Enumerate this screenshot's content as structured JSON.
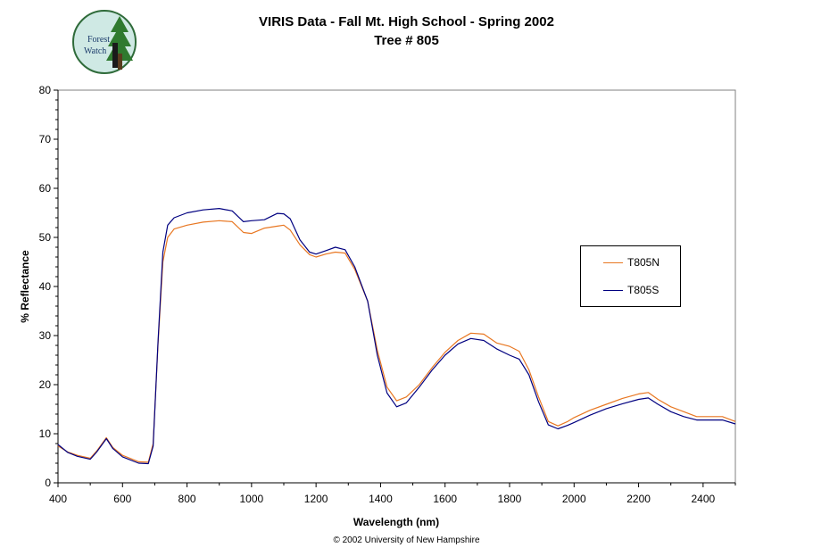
{
  "logo": {
    "text_line1": "Forest",
    "text_line2": "Watch"
  },
  "footer": "© 2002 University of New Hampshire",
  "chart_data": {
    "type": "line",
    "title": "VIRIS Data - Fall Mt. High School - Spring 2002",
    "subtitle": "Tree # 805",
    "xlabel": "Wavelength (nm)",
    "ylabel": "% Reflectance",
    "xlim": [
      400,
      2500
    ],
    "ylim": [
      0,
      80
    ],
    "x_ticks": [
      400,
      600,
      800,
      1000,
      1200,
      1400,
      1600,
      1800,
      2000,
      2200,
      2400
    ],
    "y_ticks": [
      0,
      10,
      20,
      30,
      40,
      50,
      60,
      70,
      80
    ],
    "grid": false,
    "legend_position": "right",
    "series": [
      {
        "name": "T805N",
        "color": "#E87722",
        "x": [
          400,
          430,
          460,
          500,
          520,
          550,
          570,
          600,
          650,
          680,
          695,
          710,
          725,
          740,
          760,
          800,
          850,
          900,
          940,
          975,
          1000,
          1040,
          1080,
          1100,
          1120,
          1150,
          1180,
          1200,
          1230,
          1260,
          1290,
          1320,
          1360,
          1390,
          1420,
          1450,
          1480,
          1520,
          1560,
          1600,
          1640,
          1680,
          1720,
          1760,
          1800,
          1830,
          1860,
          1890,
          1920,
          1950,
          1980,
          2000,
          2050,
          2100,
          2150,
          2200,
          2230,
          2260,
          2300,
          2340,
          2380,
          2420,
          2460,
          2500
        ],
        "y": [
          7.5,
          6.3,
          5.6,
          5.0,
          6.5,
          9.2,
          7.2,
          5.6,
          4.3,
          4.2,
          8.0,
          28.0,
          45.0,
          50.0,
          51.7,
          52.5,
          53.1,
          53.4,
          53.2,
          51.0,
          50.8,
          51.9,
          52.3,
          52.5,
          51.5,
          48.5,
          46.5,
          46.0,
          46.6,
          47.0,
          46.8,
          43.5,
          37.0,
          27.0,
          19.5,
          16.7,
          17.5,
          20.0,
          23.5,
          26.6,
          29.0,
          30.5,
          30.3,
          28.5,
          27.8,
          26.8,
          23.0,
          17.5,
          12.5,
          11.6,
          12.5,
          13.3,
          14.8,
          16.0,
          17.2,
          18.1,
          18.4,
          17.0,
          15.5,
          14.5,
          13.5,
          13.5,
          13.5,
          12.5
        ]
      },
      {
        "name": "T805S",
        "color": "#000080",
        "x": [
          400,
          430,
          460,
          500,
          520,
          550,
          570,
          600,
          650,
          680,
          695,
          710,
          725,
          740,
          760,
          800,
          850,
          900,
          940,
          975,
          1000,
          1040,
          1080,
          1100,
          1120,
          1150,
          1180,
          1200,
          1230,
          1260,
          1290,
          1320,
          1360,
          1390,
          1420,
          1450,
          1480,
          1520,
          1560,
          1600,
          1640,
          1680,
          1720,
          1760,
          1800,
          1830,
          1860,
          1890,
          1920,
          1950,
          1980,
          2000,
          2050,
          2100,
          2150,
          2200,
          2230,
          2260,
          2300,
          2340,
          2380,
          2420,
          2460,
          2500
        ],
        "y": [
          7.8,
          6.2,
          5.4,
          4.8,
          6.3,
          9.0,
          7.0,
          5.3,
          4.0,
          3.9,
          7.5,
          28.5,
          47.0,
          52.5,
          54.0,
          55.0,
          55.6,
          55.9,
          55.4,
          53.2,
          53.4,
          53.6,
          54.9,
          54.8,
          53.8,
          49.5,
          47.0,
          46.6,
          47.3,
          48.0,
          47.5,
          44.0,
          37.0,
          26.0,
          18.3,
          15.5,
          16.3,
          19.5,
          23.0,
          26.0,
          28.3,
          29.4,
          29.0,
          27.3,
          26.0,
          25.2,
          22.0,
          16.5,
          11.8,
          11.0,
          11.7,
          12.3,
          13.8,
          15.1,
          16.1,
          17.0,
          17.3,
          16.0,
          14.5,
          13.5,
          12.8,
          12.8,
          12.8,
          12.0
        ]
      }
    ]
  }
}
